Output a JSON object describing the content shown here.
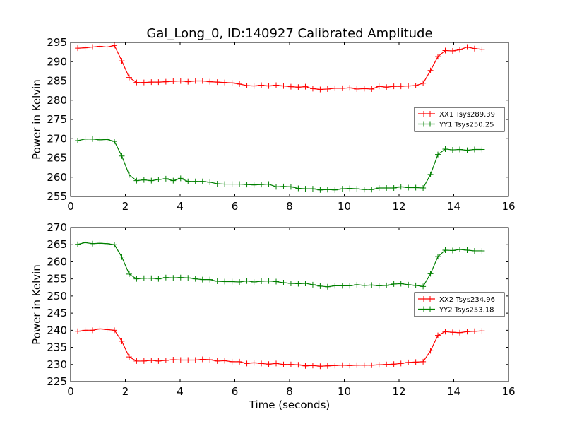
{
  "chart_data": [
    {
      "type": "line",
      "title": "Gal_Long_0, ID:140927 Calibrated Amplitude",
      "xlabel": "",
      "ylabel": "Power in Kelvin",
      "xlim": [
        0,
        16
      ],
      "ylim": [
        255,
        295
      ],
      "xticks": [
        "0",
        "2",
        "4",
        "6",
        "8",
        "10",
        "12",
        "14",
        "16"
      ],
      "yticks": [
        "255",
        "260",
        "265",
        "270",
        "275",
        "280",
        "285",
        "290",
        "295"
      ],
      "legend_position": "center-right",
      "x": [
        0.26,
        0.53,
        0.8,
        1.07,
        1.33,
        1.6,
        1.87,
        2.14,
        2.41,
        2.68,
        2.95,
        3.21,
        3.48,
        3.75,
        4.02,
        4.29,
        4.56,
        4.82,
        5.09,
        5.36,
        5.63,
        5.9,
        6.17,
        6.44,
        6.7,
        6.97,
        7.24,
        7.51,
        7.78,
        8.05,
        8.32,
        8.58,
        8.85,
        9.12,
        9.39,
        9.66,
        9.93,
        10.2,
        10.46,
        10.73,
        11.0,
        11.27,
        11.54,
        11.81,
        12.07,
        12.34,
        12.61,
        12.88,
        13.15,
        13.42,
        13.69,
        13.96,
        14.22,
        14.49,
        14.76,
        15.03
      ],
      "series": [
        {
          "name": "XX1 Tsys289.39",
          "color": "#ff0000",
          "values": [
            293.5,
            293.6,
            293.8,
            294.0,
            293.8,
            294.2,
            290.2,
            285.9,
            284.6,
            284.6,
            284.7,
            284.7,
            284.8,
            284.9,
            285.0,
            284.8,
            285.0,
            285.0,
            284.8,
            284.7,
            284.6,
            284.5,
            284.2,
            283.8,
            283.7,
            283.9,
            283.7,
            283.9,
            283.7,
            283.5,
            283.4,
            283.5,
            283.0,
            282.8,
            282.9,
            283.1,
            283.1,
            283.2,
            282.9,
            283.0,
            282.9,
            283.6,
            283.4,
            283.6,
            283.6,
            283.7,
            283.8,
            284.4,
            287.7,
            291.3,
            292.9,
            292.8,
            293.1,
            293.8,
            293.4,
            293.2
          ]
        },
        {
          "name": "YY1 Tsys250.25",
          "color": "#008000",
          "values": [
            269.5,
            269.9,
            269.9,
            269.7,
            269.8,
            269.3,
            265.5,
            260.6,
            259.1,
            259.3,
            259.1,
            259.4,
            259.6,
            259.1,
            259.7,
            258.9,
            258.9,
            258.9,
            258.7,
            258.3,
            258.2,
            258.2,
            258.2,
            258.1,
            258.0,
            258.1,
            258.2,
            257.5,
            257.6,
            257.5,
            257.1,
            257.0,
            257.0,
            256.7,
            256.8,
            256.7,
            257.0,
            257.1,
            257.0,
            256.8,
            256.8,
            257.2,
            257.2,
            257.2,
            257.5,
            257.3,
            257.3,
            257.2,
            260.7,
            265.9,
            267.3,
            267.1,
            267.2,
            267.0,
            267.2,
            267.2
          ]
        }
      ]
    },
    {
      "type": "line",
      "title": "",
      "xlabel": "Time (seconds)",
      "ylabel": "Power in Kelvin",
      "xlim": [
        0,
        16
      ],
      "ylim": [
        225,
        270
      ],
      "xticks": [
        "0",
        "2",
        "4",
        "6",
        "8",
        "10",
        "12",
        "14",
        "16"
      ],
      "yticks": [
        "225",
        "230",
        "235",
        "240",
        "245",
        "250",
        "255",
        "260",
        "265",
        "270"
      ],
      "legend_position": "center-right",
      "x": [
        0.26,
        0.53,
        0.8,
        1.07,
        1.33,
        1.6,
        1.87,
        2.14,
        2.41,
        2.68,
        2.95,
        3.21,
        3.48,
        3.75,
        4.02,
        4.29,
        4.56,
        4.82,
        5.09,
        5.36,
        5.63,
        5.9,
        6.17,
        6.44,
        6.7,
        6.97,
        7.24,
        7.51,
        7.78,
        8.05,
        8.32,
        8.58,
        8.85,
        9.12,
        9.39,
        9.66,
        9.93,
        10.2,
        10.46,
        10.73,
        11.0,
        11.27,
        11.54,
        11.81,
        12.07,
        12.34,
        12.61,
        12.88,
        13.15,
        13.42,
        13.69,
        13.96,
        14.22,
        14.49,
        14.76,
        15.03
      ],
      "series": [
        {
          "name": "XX2 Tsys234.96",
          "color": "#ff0000",
          "values": [
            239.7,
            240.0,
            240.0,
            240.4,
            240.2,
            240.0,
            236.8,
            232.2,
            231.0,
            231.0,
            231.2,
            231.0,
            231.2,
            231.4,
            231.3,
            231.3,
            231.3,
            231.5,
            231.4,
            231.0,
            231.1,
            230.8,
            230.8,
            230.3,
            230.5,
            230.3,
            230.1,
            230.3,
            230.0,
            230.0,
            229.9,
            229.6,
            229.7,
            229.5,
            229.6,
            229.7,
            229.8,
            229.7,
            229.8,
            229.8,
            229.8,
            229.9,
            230.0,
            230.1,
            230.3,
            230.6,
            230.7,
            230.8,
            234.0,
            238.5,
            239.6,
            239.4,
            239.3,
            239.6,
            239.7,
            239.8
          ]
        },
        {
          "name": "YY2 Tsys253.18",
          "color": "#008000",
          "values": [
            265.1,
            265.6,
            265.3,
            265.4,
            265.3,
            265.0,
            261.4,
            256.4,
            255.0,
            255.2,
            255.2,
            255.0,
            255.4,
            255.3,
            255.4,
            255.3,
            255.0,
            254.8,
            254.8,
            254.3,
            254.2,
            254.2,
            254.1,
            254.4,
            254.1,
            254.3,
            254.4,
            254.2,
            253.9,
            253.7,
            253.6,
            253.7,
            253.3,
            252.9,
            252.7,
            253.0,
            253.0,
            253.0,
            253.3,
            253.1,
            253.2,
            253.0,
            253.1,
            253.5,
            253.6,
            253.3,
            253.1,
            252.8,
            256.5,
            261.5,
            263.4,
            263.3,
            263.6,
            263.4,
            263.2,
            263.2
          ]
        }
      ]
    }
  ]
}
